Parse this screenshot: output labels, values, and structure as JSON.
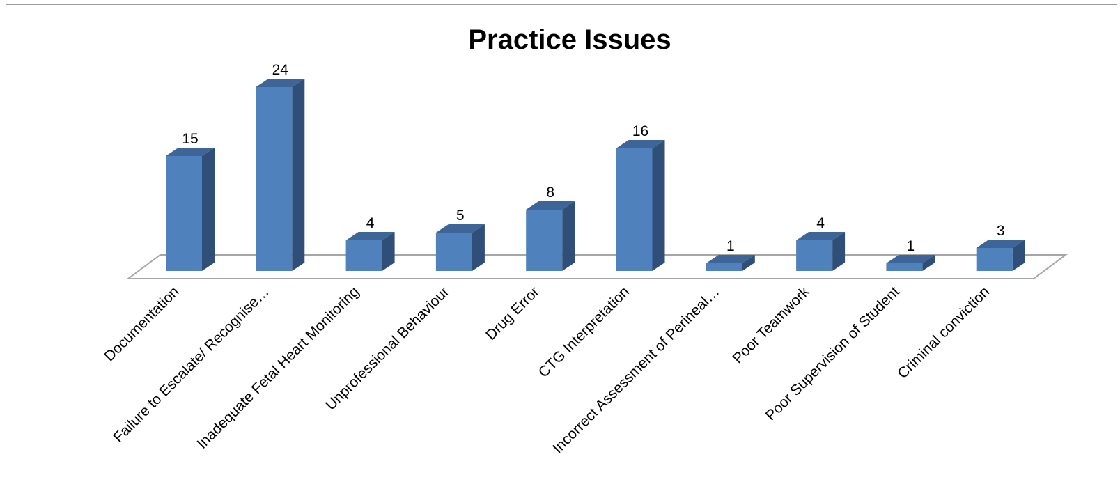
{
  "chart_data": {
    "type": "bar",
    "title": "Practice Issues",
    "xlabel": "",
    "ylabel": "",
    "ylim": [
      0,
      26
    ],
    "grid": false,
    "legend": "none",
    "three_d": true,
    "categories": [
      "Documentation",
      "Failure to Escalate/ Recognise…",
      "Inadequate Fetal Heart Monitoring",
      "Unprofessional Behaviour",
      "Drug Error",
      "CTG Interpretation",
      "Incorrect Assessment of Perineal…",
      "Poor Teamwork",
      "Poor Supervision of Student",
      "Criminal conviction"
    ],
    "values": [
      15,
      24,
      4,
      5,
      8,
      16,
      1,
      4,
      1,
      3
    ],
    "colors": {
      "bar_front": "#4f81bd",
      "bar_side": "#2f4f78",
      "bar_top": "#3d6598",
      "floor_line": "#a6a6a6",
      "frame": "#9a9a9a"
    }
  }
}
